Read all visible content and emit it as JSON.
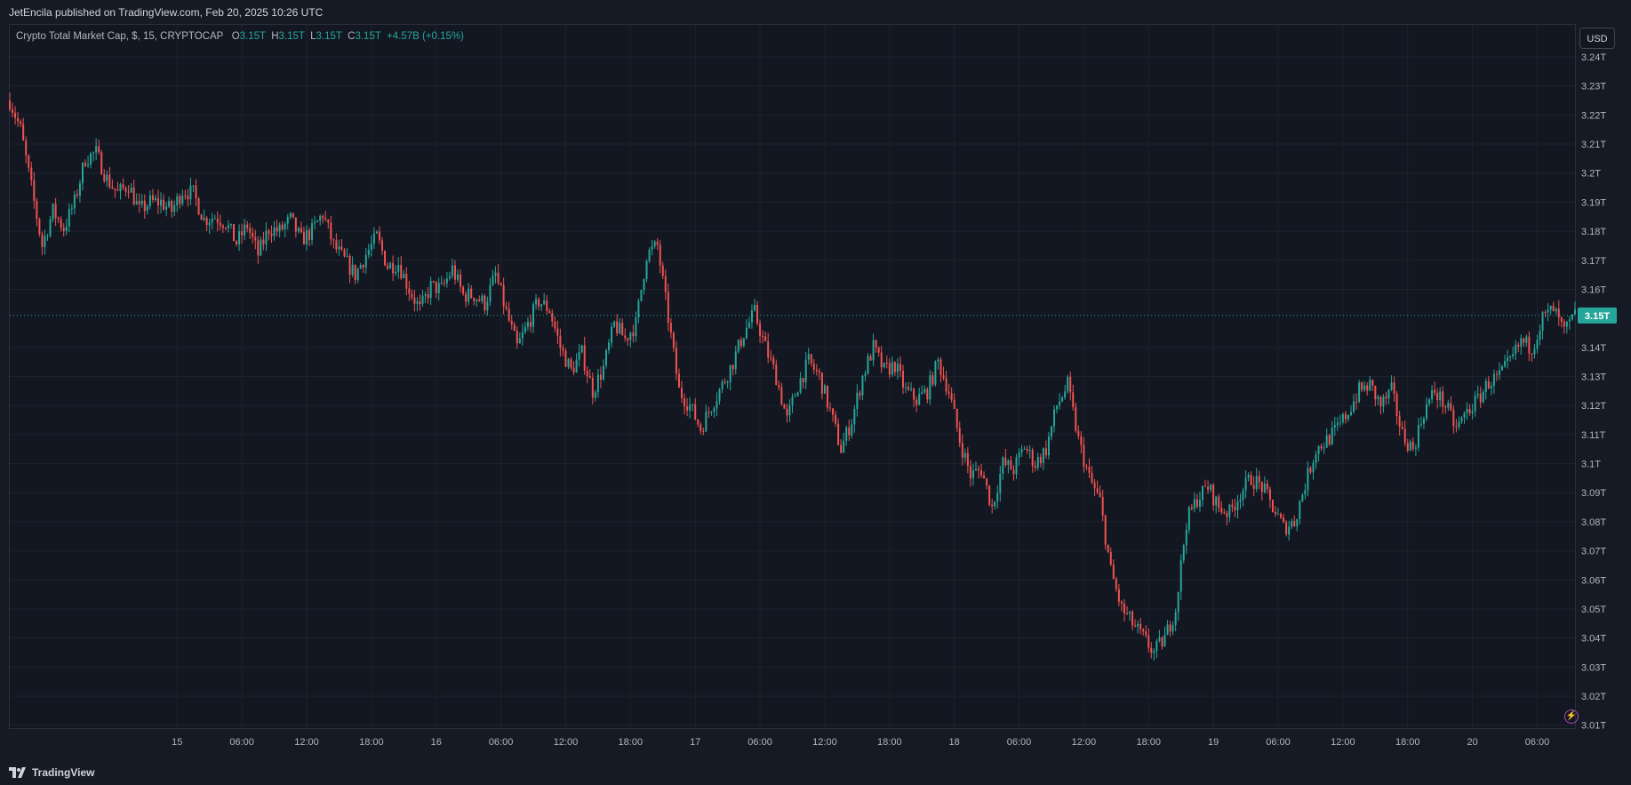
{
  "header": {
    "published": "JetEncila published on TradingView.com, Feb 20, 2025 10:26 UTC"
  },
  "legend": {
    "symbol": "Crypto Total Market Cap, $, 15, CRYPTOCAP",
    "o_label": "O",
    "o_value": "3.15T",
    "h_label": "H",
    "h_value": "3.15T",
    "l_label": "L",
    "l_value": "3.15T",
    "c_label": "C",
    "c_value": "3.15T",
    "change": "+4.57B (+0.15%)"
  },
  "currency_button": "USD",
  "footer": {
    "brand": "TradingView"
  },
  "colors": {
    "up": "#26a69a",
    "down": "#ef5350",
    "grid": "#1e222d",
    "price_line": "#26a69a",
    "badge_bg": "#26a69a"
  },
  "chart_data": {
    "type": "candlestick",
    "title": "Crypto Total Market Cap, $, 15, CRYPTOCAP",
    "interval": "15",
    "grid": true,
    "ylim": [
      3.009,
      3.251
    ],
    "y_unit": "T",
    "y_ticks": [
      {
        "v": 3.01,
        "label": "3.01T"
      },
      {
        "v": 3.02,
        "label": "3.02T"
      },
      {
        "v": 3.03,
        "label": "3.03T"
      },
      {
        "v": 3.04,
        "label": "3.04T"
      },
      {
        "v": 3.05,
        "label": "3.05T"
      },
      {
        "v": 3.06,
        "label": "3.06T"
      },
      {
        "v": 3.07,
        "label": "3.07T"
      },
      {
        "v": 3.08,
        "label": "3.08T"
      },
      {
        "v": 3.09,
        "label": "3.09T"
      },
      {
        "v": 3.1,
        "label": "3.1T"
      },
      {
        "v": 3.11,
        "label": "3.11T"
      },
      {
        "v": 3.12,
        "label": "3.12T"
      },
      {
        "v": 3.13,
        "label": "3.13T"
      },
      {
        "v": 3.14,
        "label": "3.14T"
      },
      {
        "v": 3.16,
        "label": "3.16T"
      },
      {
        "v": 3.17,
        "label": "3.17T"
      },
      {
        "v": 3.18,
        "label": "3.18T"
      },
      {
        "v": 3.19,
        "label": "3.19T"
      },
      {
        "v": 3.2,
        "label": "3.2T"
      },
      {
        "v": 3.21,
        "label": "3.21T"
      },
      {
        "v": 3.22,
        "label": "3.22T"
      },
      {
        "v": 3.23,
        "label": "3.23T"
      },
      {
        "v": 3.24,
        "label": "3.24T"
      }
    ],
    "x_unit": "hours since Feb 15 00:00 UTC",
    "xlim": [
      -15.5,
      129.5
    ],
    "x_ticks": [
      {
        "t": 0,
        "label": "15"
      },
      {
        "t": 6,
        "label": "06:00"
      },
      {
        "t": 12,
        "label": "12:00"
      },
      {
        "t": 18,
        "label": "18:00"
      },
      {
        "t": 24,
        "label": "16"
      },
      {
        "t": 30,
        "label": "06:00"
      },
      {
        "t": 36,
        "label": "12:00"
      },
      {
        "t": 42,
        "label": "18:00"
      },
      {
        "t": 48,
        "label": "17"
      },
      {
        "t": 54,
        "label": "06:00"
      },
      {
        "t": 60,
        "label": "12:00"
      },
      {
        "t": 66,
        "label": "18:00"
      },
      {
        "t": 72,
        "label": "18"
      },
      {
        "t": 78,
        "label": "06:00"
      },
      {
        "t": 84,
        "label": "12:00"
      },
      {
        "t": 90,
        "label": "18:00"
      },
      {
        "t": 96,
        "label": "19"
      },
      {
        "t": 102,
        "label": "06:00"
      },
      {
        "t": 108,
        "label": "12:00"
      },
      {
        "t": 114,
        "label": "18:00"
      },
      {
        "t": 120,
        "label": "20"
      },
      {
        "t": 126,
        "label": "06:00"
      }
    ],
    "last_price": {
      "v": 3.151,
      "label": "3.15T"
    },
    "path_points": [
      [
        -15.5,
        3.225
      ],
      [
        -14.5,
        3.215
      ],
      [
        -13.5,
        3.195
      ],
      [
        -12.5,
        3.175
      ],
      [
        -11.5,
        3.187
      ],
      [
        -10.5,
        3.181
      ],
      [
        -9.5,
        3.19
      ],
      [
        -8.5,
        3.205
      ],
      [
        -7.5,
        3.207
      ],
      [
        -6.5,
        3.198
      ],
      [
        -5.5,
        3.193
      ],
      [
        -4.5,
        3.196
      ],
      [
        -3.5,
        3.187
      ],
      [
        -2.5,
        3.19
      ],
      [
        -1.5,
        3.19
      ],
      [
        -0.5,
        3.187
      ],
      [
        0.5,
        3.194
      ],
      [
        1.5,
        3.193
      ],
      [
        2.5,
        3.184
      ],
      [
        3.5,
        3.185
      ],
      [
        4.5,
        3.183
      ],
      [
        5.5,
        3.176
      ],
      [
        6.5,
        3.182
      ],
      [
        7.5,
        3.172
      ],
      [
        8.5,
        3.181
      ],
      [
        9.5,
        3.18
      ],
      [
        10.5,
        3.184
      ],
      [
        11.5,
        3.177
      ],
      [
        12.5,
        3.18
      ],
      [
        13.5,
        3.186
      ],
      [
        14.5,
        3.175
      ],
      [
        15.5,
        3.17
      ],
      [
        16.5,
        3.165
      ],
      [
        17.5,
        3.172
      ],
      [
        18.5,
        3.178
      ],
      [
        19.5,
        3.168
      ],
      [
        20.5,
        3.169
      ],
      [
        21.5,
        3.16
      ],
      [
        22.5,
        3.153
      ],
      [
        23.5,
        3.161
      ],
      [
        24.5,
        3.16
      ],
      [
        25.5,
        3.167
      ],
      [
        26.5,
        3.158
      ],
      [
        27.5,
        3.158
      ],
      [
        28.5,
        3.155
      ],
      [
        29.5,
        3.165
      ],
      [
        30.5,
        3.152
      ],
      [
        31.5,
        3.14
      ],
      [
        32.5,
        3.148
      ],
      [
        33.5,
        3.156
      ],
      [
        34.5,
        3.153
      ],
      [
        35.5,
        3.14
      ],
      [
        36.5,
        3.132
      ],
      [
        37.5,
        3.138
      ],
      [
        38.5,
        3.125
      ],
      [
        39.5,
        3.133
      ],
      [
        40.5,
        3.148
      ],
      [
        41.5,
        3.143
      ],
      [
        42.5,
        3.148
      ],
      [
        43.5,
        3.172
      ],
      [
        44.5,
        3.175
      ],
      [
        45.5,
        3.15
      ],
      [
        46.5,
        3.125
      ],
      [
        47.5,
        3.12
      ],
      [
        48.5,
        3.112
      ],
      [
        49.5,
        3.12
      ],
      [
        50.5,
        3.127
      ],
      [
        51.5,
        3.135
      ],
      [
        52.5,
        3.145
      ],
      [
        53.5,
        3.152
      ],
      [
        54.5,
        3.14
      ],
      [
        55.5,
        3.13
      ],
      [
        56.5,
        3.115
      ],
      [
        57.5,
        3.127
      ],
      [
        58.5,
        3.135
      ],
      [
        59.5,
        3.13
      ],
      [
        60.5,
        3.118
      ],
      [
        61.5,
        3.105
      ],
      [
        62.5,
        3.115
      ],
      [
        63.5,
        3.13
      ],
      [
        64.5,
        3.14
      ],
      [
        65.5,
        3.132
      ],
      [
        66.5,
        3.134
      ],
      [
        67.5,
        3.125
      ],
      [
        68.5,
        3.122
      ],
      [
        69.5,
        3.125
      ],
      [
        70.5,
        3.135
      ],
      [
        71.5,
        3.125
      ],
      [
        72.5,
        3.108
      ],
      [
        73.5,
        3.096
      ],
      [
        74.5,
        3.098
      ],
      [
        75.5,
        3.085
      ],
      [
        76.5,
        3.1
      ],
      [
        77.5,
        3.098
      ],
      [
        78.5,
        3.106
      ],
      [
        79.5,
        3.1
      ],
      [
        80.5,
        3.105
      ],
      [
        81.5,
        3.12
      ],
      [
        82.5,
        3.127
      ],
      [
        83.5,
        3.108
      ],
      [
        84.5,
        3.095
      ],
      [
        85.5,
        3.087
      ],
      [
        86.5,
        3.063
      ],
      [
        87.5,
        3.05
      ],
      [
        88.5,
        3.045
      ],
      [
        89.5,
        3.04
      ],
      [
        90.5,
        3.035
      ],
      [
        91.5,
        3.04
      ],
      [
        92.5,
        3.05
      ],
      [
        93.5,
        3.08
      ],
      [
        94.5,
        3.088
      ],
      [
        95.5,
        3.092
      ],
      [
        96.5,
        3.085
      ],
      [
        97.5,
        3.083
      ],
      [
        98.5,
        3.09
      ],
      [
        99.5,
        3.095
      ],
      [
        100.5,
        3.092
      ],
      [
        101.5,
        3.085
      ],
      [
        102.5,
        3.078
      ],
      [
        103.5,
        3.08
      ],
      [
        104.5,
        3.093
      ],
      [
        105.5,
        3.105
      ],
      [
        106.5,
        3.108
      ],
      [
        107.5,
        3.112
      ],
      [
        108.5,
        3.118
      ],
      [
        109.5,
        3.125
      ],
      [
        110.5,
        3.127
      ],
      [
        111.5,
        3.12
      ],
      [
        112.5,
        3.125
      ],
      [
        113.5,
        3.11
      ],
      [
        114.5,
        3.105
      ],
      [
        115.5,
        3.118
      ],
      [
        116.5,
        3.125
      ],
      [
        117.5,
        3.12
      ],
      [
        118.5,
        3.112
      ],
      [
        119.5,
        3.118
      ],
      [
        120.5,
        3.122
      ],
      [
        121.5,
        3.128
      ],
      [
        122.5,
        3.13
      ],
      [
        123.5,
        3.135
      ],
      [
        124.5,
        3.142
      ],
      [
        125.5,
        3.14
      ],
      [
        126.5,
        3.15
      ],
      [
        127.5,
        3.153
      ],
      [
        128.5,
        3.145
      ],
      [
        129.5,
        3.151
      ]
    ]
  }
}
